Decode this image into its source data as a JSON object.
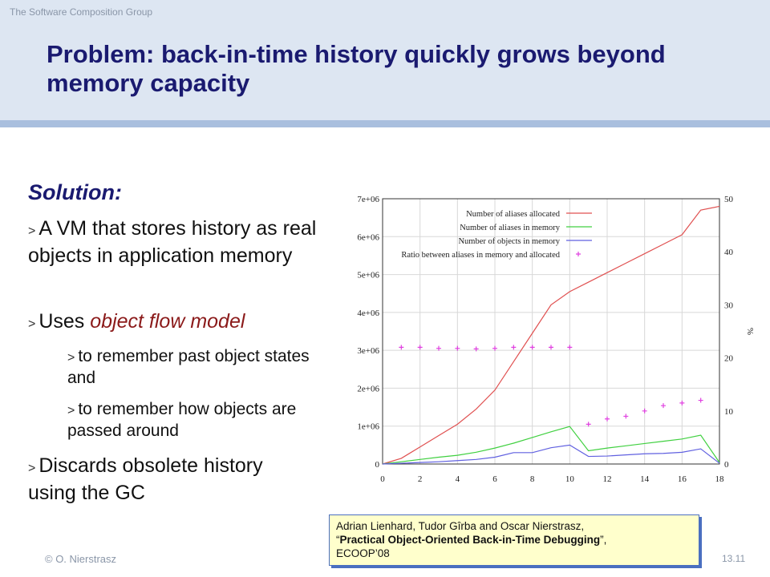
{
  "header": {
    "group": "The Software Composition Group",
    "title": "Problem: back-in-time history quickly grows beyond memory capacity"
  },
  "body": {
    "heading": "Solution:",
    "bullets": [
      {
        "marker": ">",
        "text": "A VM that stores history as real objects in application memory"
      },
      {
        "marker": ">",
        "prefix": "Uses",
        "emphasis": "object flow model"
      },
      {
        "marker": ">",
        "text": "to remember past object states and"
      },
      {
        "marker": ">",
        "text": "to remember how objects are passed around"
      },
      {
        "marker": ">",
        "text": "Discards obsolete history using the GC"
      }
    ]
  },
  "citation": {
    "authors": "Adrian Lienhard, Tudor Gîrba and Oscar Nierstrasz,",
    "title_open": "“",
    "title": "Practical Object-Oriented Back-in-Time Debugging",
    "title_close": "”,",
    "venue": "ECOOP’08"
  },
  "footer": {
    "author": "© O. Nierstrasz",
    "page": "13.11"
  },
  "chart_data": {
    "type": "line",
    "x": [
      0,
      1,
      2,
      3,
      4,
      5,
      6,
      7,
      8,
      9,
      10,
      11,
      12,
      13,
      14,
      15,
      16,
      17,
      18
    ],
    "xlim": [
      0,
      18
    ],
    "ylim": [
      0,
      7000000
    ],
    "y2lim": [
      0,
      50
    ],
    "ylabel": "",
    "y2label": "%",
    "xticks": [
      "0",
      "2",
      "4",
      "6",
      "8",
      "10",
      "12",
      "14",
      "16",
      "18"
    ],
    "yticks": [
      "0",
      "1e+06",
      "2e+06",
      "3e+06",
      "4e+06",
      "5e+06",
      "6e+06",
      "7e+06"
    ],
    "y2ticks": [
      "0",
      "10",
      "20",
      "30",
      "40",
      "50"
    ],
    "grid": true,
    "legend_position": "top-left",
    "colors": {
      "allocated": "#e05050",
      "aliases_memory": "#40d040",
      "objects_memory": "#6060e0",
      "ratio": "#e040e0"
    },
    "series": [
      {
        "name": "Number of aliases allocated",
        "axis": "left",
        "values": [
          0,
          150000,
          450000,
          750000,
          1050000,
          1450000,
          1950000,
          2700000,
          3450000,
          4200000,
          4550000,
          4800000,
          5050000,
          5300000,
          5550000,
          5800000,
          6050000,
          6700000,
          6800000
        ]
      },
      {
        "name": "Number of aliases in memory",
        "axis": "left",
        "values": [
          0,
          60000,
          120000,
          180000,
          230000,
          310000,
          420000,
          550000,
          700000,
          850000,
          990000,
          350000,
          420000,
          480000,
          540000,
          600000,
          660000,
          760000,
          40000
        ]
      },
      {
        "name": "Number of objects in memory",
        "axis": "left",
        "values": [
          0,
          20000,
          40000,
          60000,
          90000,
          120000,
          180000,
          300000,
          300000,
          430000,
          500000,
          200000,
          210000,
          240000,
          270000,
          280000,
          310000,
          400000,
          20000
        ]
      },
      {
        "name": "Ratio between aliases in memory and allocated",
        "axis": "right",
        "style": "points",
        "x": [
          1,
          2,
          3,
          4,
          5,
          6,
          7,
          8,
          9,
          10,
          11,
          12,
          13,
          14,
          15,
          16,
          17
        ],
        "values": [
          22,
          22,
          21.8,
          21.8,
          21.7,
          21.8,
          22,
          22,
          22,
          22,
          7.5,
          8.5,
          9,
          10,
          11,
          11.5,
          12
        ]
      }
    ]
  }
}
